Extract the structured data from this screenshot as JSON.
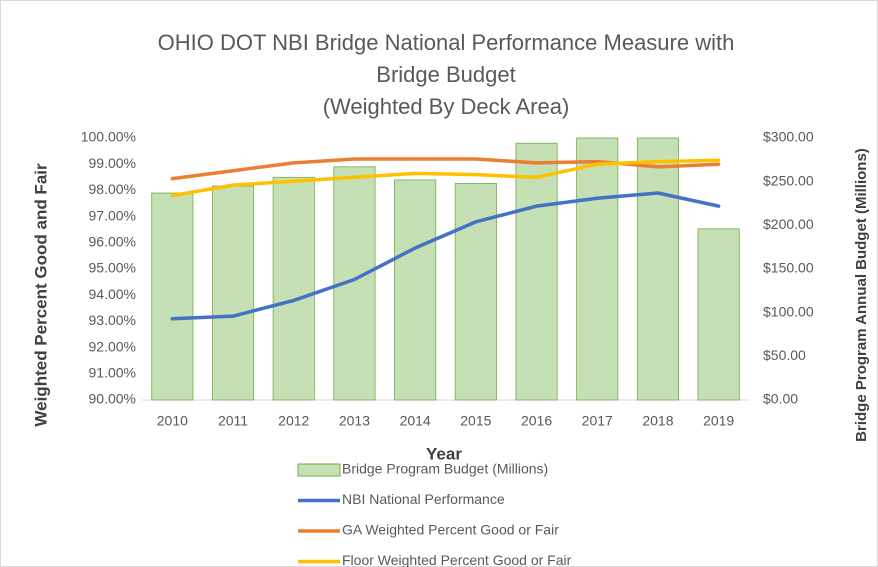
{
  "chart_data": {
    "type": "combo",
    "title": [
      "OHIO DOT NBI Bridge National Performance  Measure  with",
      "Bridge Budget",
      "(Weighted By Deck Area)"
    ],
    "x_label": "Year",
    "y_label": "Weighted Percent Good and Fair",
    "y2_label": "Bridge Program Annual Budget (Millions)",
    "categories": [
      "2010",
      "2011",
      "2012",
      "2013",
      "2014",
      "2015",
      "2016",
      "2017",
      "2018",
      "2019"
    ],
    "ylim": [
      90,
      100
    ],
    "yticks": [
      {
        "value": 90,
        "label": "90.00%"
      },
      {
        "value": 91,
        "label": "91.00%"
      },
      {
        "value": 92,
        "label": "92.00%"
      },
      {
        "value": 93,
        "label": "93.00%"
      },
      {
        "value": 94,
        "label": "94.00%"
      },
      {
        "value": 95,
        "label": "95.00%"
      },
      {
        "value": 96,
        "label": "96.00%"
      },
      {
        "value": 97,
        "label": "97.00%"
      },
      {
        "value": 98,
        "label": "98.00%"
      },
      {
        "value": 99,
        "label": "99.00%"
      },
      {
        "value": 100,
        "label": "100.00%"
      }
    ],
    "y2lim": [
      0,
      300
    ],
    "y2ticks": [
      {
        "value": 0,
        "label": "$0.00"
      },
      {
        "value": 50,
        "label": "$50.00"
      },
      {
        "value": 100,
        "label": "$100.00"
      },
      {
        "value": 150,
        "label": "$150.00"
      },
      {
        "value": 200,
        "label": "$200.00"
      },
      {
        "value": 250,
        "label": "$250.00"
      },
      {
        "value": 300,
        "label": "$300.00"
      }
    ],
    "grid": false,
    "legend": "bottom",
    "series": [
      {
        "name": "Bridge Program Budget (Millions)",
        "type": "bar",
        "axis": "y2",
        "color": "#c5e0b4",
        "values": [
          237,
          245,
          255,
          267,
          252,
          248,
          294,
          300,
          300,
          196
        ]
      },
      {
        "name": "NBI National Performance",
        "type": "line",
        "color": "#4472c4",
        "values": [
          93.1,
          93.2,
          93.8,
          94.6,
          95.8,
          96.8,
          97.4,
          97.7,
          97.9,
          97.4
        ]
      },
      {
        "name": "GA Weighted Percent Good or Fair",
        "type": "line",
        "color": "#ed7d31",
        "values": [
          98.45,
          98.75,
          99.05,
          99.2,
          99.2,
          99.2,
          99.05,
          99.1,
          98.9,
          99.0
        ]
      },
      {
        "name": "Floor  Weighted Percent Good or Fair",
        "type": "line",
        "color": "#ffc000",
        "values": [
          97.8,
          98.2,
          98.35,
          98.5,
          98.65,
          98.6,
          98.5,
          99.0,
          99.1,
          99.15
        ]
      }
    ]
  }
}
